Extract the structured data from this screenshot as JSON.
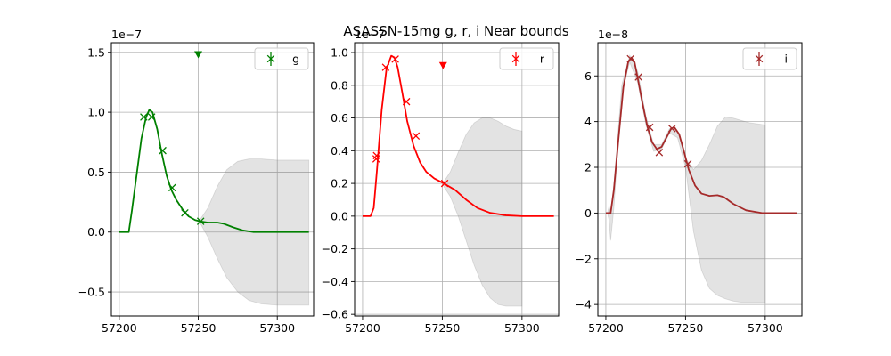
{
  "figure": {
    "title": "ASASSN-15mg  g, r, i Near bounds"
  },
  "chart_data": [
    {
      "type": "line",
      "panel": "g",
      "color": "#008000",
      "legend": {
        "label": "g",
        "position": "top-right"
      },
      "offset_label": "1e−7",
      "xlim": [
        57195,
        57323
      ],
      "ylim": [
        -0.7,
        1.58
      ],
      "xticks": [
        57200,
        57250,
        57300
      ],
      "yticks": [
        -0.5,
        0.0,
        0.5,
        1.0,
        1.5
      ],
      "grid": true,
      "model": {
        "x": [
          57200,
          57206,
          57208,
          57211,
          57214,
          57217,
          57219,
          57221,
          57224,
          57227,
          57230,
          57233,
          57236,
          57240,
          57244,
          57248,
          57251,
          57256,
          57262,
          57266,
          57272,
          57278,
          57285,
          57295,
          57305,
          57320
        ],
        "y": [
          0.0,
          0.0,
          0.18,
          0.48,
          0.78,
          0.96,
          1.02,
          1.0,
          0.86,
          0.65,
          0.47,
          0.35,
          0.27,
          0.19,
          0.13,
          0.1,
          0.09,
          0.08,
          0.08,
          0.07,
          0.04,
          0.015,
          0.0,
          0.0,
          0.0,
          0.0
        ]
      },
      "band": {
        "x": [
          57251,
          57256,
          57262,
          57268,
          57275,
          57282,
          57290,
          57300,
          57310,
          57320
        ],
        "upper": [
          0.1,
          0.2,
          0.38,
          0.52,
          0.59,
          0.61,
          0.61,
          0.6,
          0.6,
          0.6
        ],
        "lower": [
          0.08,
          -0.04,
          -0.22,
          -0.38,
          -0.5,
          -0.57,
          -0.6,
          -0.61,
          -0.61,
          -0.61
        ]
      },
      "points": {
        "x": [
          57215.5,
          57220.5,
          57227.5,
          57233.5,
          57241.5,
          57251.5
        ],
        "y": [
          0.96,
          0.96,
          0.68,
          0.37,
          0.16,
          0.09
        ]
      },
      "upper_limits": {
        "x": [
          57250
        ],
        "y": [
          1.48
        ]
      }
    },
    {
      "type": "line",
      "panel": "r",
      "color": "#ff0000",
      "legend": {
        "label": "r",
        "position": "top-right"
      },
      "offset_label": "1e−7",
      "xlim": [
        57195,
        57323
      ],
      "ylim": [
        -0.61,
        1.06
      ],
      "xticks": [
        57200,
        57250,
        57300
      ],
      "yticks": [
        -0.6,
        -0.4,
        -0.2,
        0.0,
        0.2,
        0.4,
        0.6,
        0.8,
        1.0
      ],
      "grid": true,
      "model": {
        "x": [
          57200,
          57205,
          57207,
          57209,
          57212,
          57215,
          57218,
          57220,
          57222,
          57225,
          57228,
          57232,
          57236,
          57240,
          57245,
          57251,
          57258,
          57265,
          57272,
          57280,
          57290,
          57300,
          57320
        ],
        "y": [
          0.0,
          0.0,
          0.05,
          0.28,
          0.65,
          0.9,
          0.98,
          0.97,
          0.91,
          0.75,
          0.58,
          0.43,
          0.33,
          0.27,
          0.23,
          0.2,
          0.16,
          0.1,
          0.05,
          0.02,
          0.005,
          0.0,
          0.0
        ]
      },
      "band": {
        "x": [
          57251,
          57255,
          57260,
          57265,
          57270,
          57275,
          57280,
          57285,
          57290,
          57295,
          57300
        ],
        "upper": [
          0.21,
          0.27,
          0.39,
          0.5,
          0.57,
          0.6,
          0.6,
          0.58,
          0.55,
          0.53,
          0.52
        ],
        "lower": [
          0.18,
          0.12,
          0.0,
          -0.15,
          -0.3,
          -0.42,
          -0.5,
          -0.54,
          -0.55,
          -0.55,
          -0.55
        ]
      },
      "points": {
        "x": [
          57208.5,
          57208.8,
          57214.5,
          57220.5,
          57227.5,
          57233.5,
          57251.5
        ],
        "y": [
          0.35,
          0.37,
          0.91,
          0.96,
          0.7,
          0.49,
          0.2
        ]
      },
      "upper_limits": {
        "x": [
          57250.5
        ],
        "y": [
          0.92
        ]
      }
    },
    {
      "type": "line",
      "panel": "i",
      "color": "#a52a2a",
      "legend": {
        "label": "i",
        "position": "top-right"
      },
      "offset_label": "1e−8",
      "xlim": [
        57195,
        57323
      ],
      "ylim": [
        -4.5,
        7.45
      ],
      "xticks": [
        57200,
        57250,
        57300
      ],
      "yticks": [
        -4,
        -2,
        0,
        2,
        4,
        6
      ],
      "grid": true,
      "model": {
        "x": [
          57200,
          57203,
          57205,
          57208,
          57211,
          57214,
          57216,
          57218,
          57220,
          57223,
          57226,
          57229,
          57232,
          57235,
          57238,
          57241,
          57243,
          57246,
          57249,
          57252,
          57256,
          57260,
          57265,
          57270,
          57274,
          57280,
          57288,
          57298,
          57320
        ],
        "y": [
          0.0,
          0.0,
          1.0,
          3.3,
          5.5,
          6.6,
          6.8,
          6.6,
          5.9,
          4.8,
          3.8,
          3.1,
          2.8,
          2.9,
          3.3,
          3.7,
          3.75,
          3.45,
          2.7,
          1.9,
          1.2,
          0.85,
          0.75,
          0.78,
          0.7,
          0.4,
          0.12,
          0.0,
          0.0
        ]
      },
      "band": {
        "x": [
          57201,
          57202,
          57203,
          57205,
          57210,
          57215,
          57220,
          57225,
          57230,
          57235,
          57240,
          57245,
          57250,
          57255,
          57260,
          57265,
          57270,
          57275,
          57280,
          57285,
          57290,
          57295,
          57300
        ],
        "upper": [
          0.0,
          0.3,
          0.05,
          1.2,
          5.6,
          6.9,
          6.2,
          4.3,
          3.0,
          3.0,
          3.7,
          3.6,
          2.4,
          1.9,
          2.3,
          3.0,
          3.8,
          4.2,
          4.15,
          4.05,
          3.95,
          3.9,
          3.85
        ],
        "lower": [
          0.0,
          -0.3,
          -1.2,
          0.2,
          5.3,
          6.6,
          5.7,
          3.9,
          2.7,
          2.8,
          3.5,
          3.3,
          2.0,
          -0.8,
          -2.5,
          -3.3,
          -3.6,
          -3.75,
          -3.85,
          -3.9,
          -3.9,
          -3.9,
          -3.9
        ]
      },
      "points": {
        "x": [
          57215.5,
          57220.5,
          57227.5,
          57233.5,
          57241.5,
          57251.5
        ],
        "y": [
          6.75,
          5.95,
          3.75,
          2.65,
          3.7,
          2.15
        ]
      },
      "upper_limits": {
        "x": [],
        "y": []
      }
    }
  ]
}
